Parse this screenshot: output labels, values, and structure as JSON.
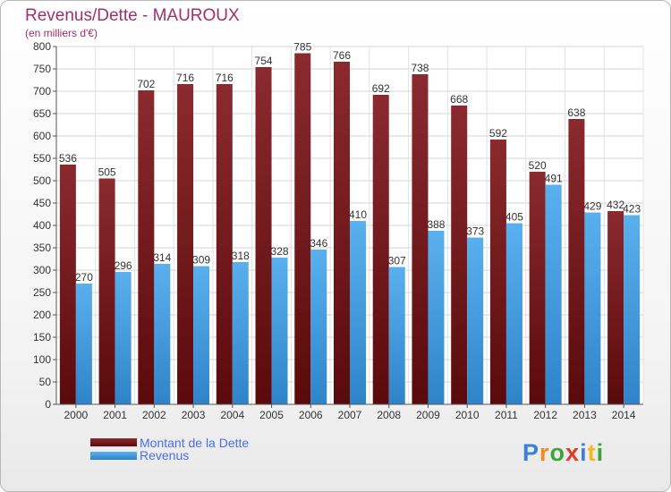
{
  "header": {
    "title": "Revenus/Dette - MAUROUX",
    "subtitle": "(en milliers d'€)"
  },
  "chart_data": {
    "type": "bar",
    "categories": [
      "2000",
      "2001",
      "2002",
      "2003",
      "2004",
      "2005",
      "2006",
      "2007",
      "2008",
      "2009",
      "2010",
      "2011",
      "2012",
      "2013",
      "2014"
    ],
    "series": [
      {
        "name": "Montant de la Dette",
        "color": "#7a1f24",
        "values": [
          536,
          505,
          702,
          716,
          716,
          754,
          785,
          766,
          692,
          738,
          668,
          592,
          520,
          638,
          432
        ]
      },
      {
        "name": "Revenus",
        "color": "#4aa3e6",
        "values": [
          270,
          296,
          314,
          309,
          318,
          328,
          346,
          410,
          307,
          388,
          373,
          405,
          491,
          429,
          423
        ]
      }
    ],
    "ylim": [
      0,
      800
    ],
    "yticks": [
      0,
      50,
      100,
      150,
      200,
      250,
      300,
      350,
      400,
      450,
      500,
      550,
      600,
      650,
      700,
      750,
      800
    ],
    "grid": true,
    "legend_position": "bottom-left"
  },
  "logo": {
    "letters": [
      {
        "ch": "P",
        "color": "#3b82d6"
      },
      {
        "ch": "r",
        "color": "#f08a1e"
      },
      {
        "ch": "o",
        "color": "#3aa63a"
      },
      {
        "ch": "x",
        "color": "#e23a2a"
      },
      {
        "ch": "i",
        "color": "#3b82d6"
      },
      {
        "ch": "t",
        "color": "#f5b81c"
      },
      {
        "ch": "i",
        "color": "#3aa63a"
      }
    ]
  }
}
